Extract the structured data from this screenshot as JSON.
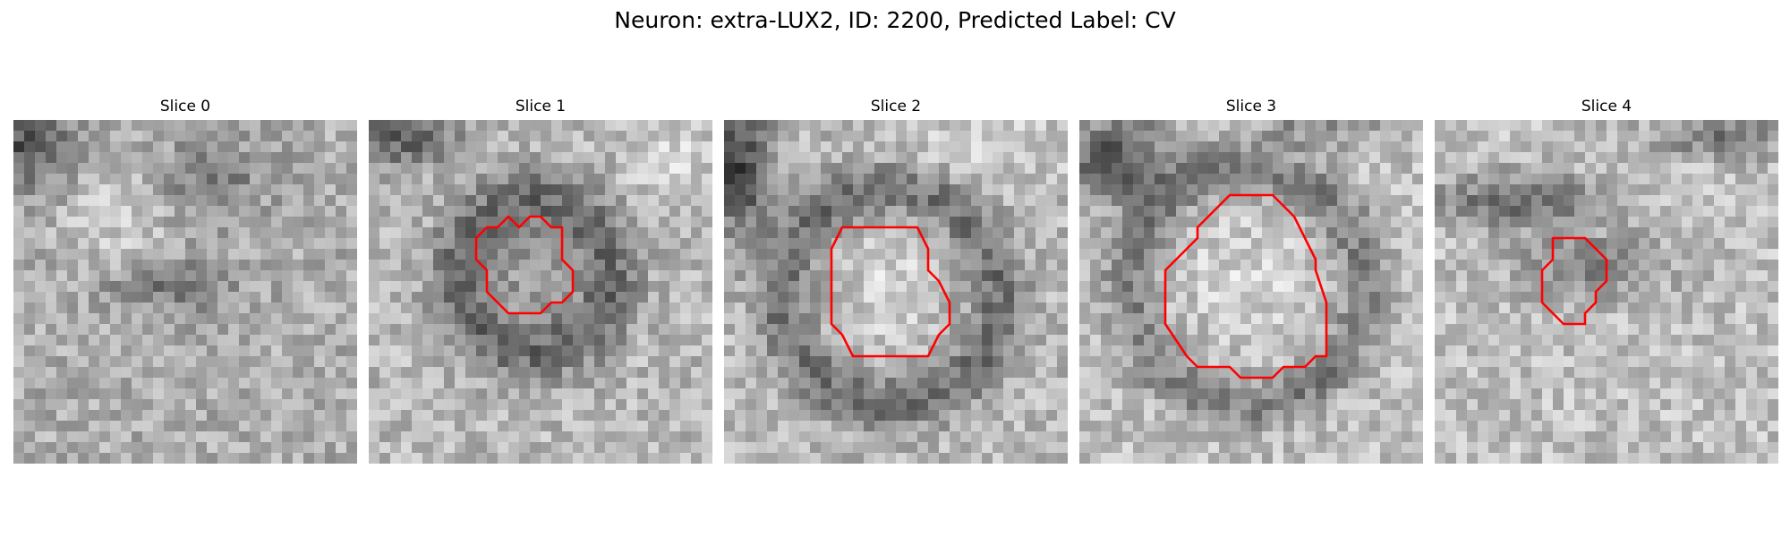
{
  "figure": {
    "title": "Neuron: extra-LUX2, ID: 2200, Predicted Label: CV"
  },
  "colors": {
    "contour": "#ff0000",
    "colormap": "gray"
  },
  "panels": [
    {
      "title": "Slice 0",
      "contour": []
    },
    {
      "title": "Slice 1",
      "contour": [
        [
          14,
          10
        ],
        [
          15,
          9
        ],
        [
          16,
          9
        ],
        [
          17,
          10
        ],
        [
          18,
          10
        ],
        [
          18,
          13
        ],
        [
          19,
          14
        ],
        [
          19,
          16
        ],
        [
          18,
          17
        ],
        [
          17,
          17
        ],
        [
          16,
          18
        ],
        [
          13,
          18
        ],
        [
          12,
          17
        ],
        [
          11,
          16
        ],
        [
          11,
          14
        ],
        [
          10,
          13
        ],
        [
          10,
          11
        ],
        [
          11,
          10
        ],
        [
          12,
          10
        ],
        [
          13,
          9
        ]
      ]
    },
    {
      "title": "Slice 2",
      "contour": [
        [
          11,
          10
        ],
        [
          18,
          10
        ],
        [
          19,
          12
        ],
        [
          19,
          14
        ],
        [
          20,
          15
        ],
        [
          21,
          17
        ],
        [
          21,
          19
        ],
        [
          20,
          20
        ],
        [
          19,
          22
        ],
        [
          12,
          22
        ],
        [
          11,
          20
        ],
        [
          10,
          19
        ],
        [
          10,
          12
        ]
      ]
    },
    {
      "title": "Slice 3",
      "contour": [
        [
          14,
          7
        ],
        [
          18,
          7
        ],
        [
          20,
          9
        ],
        [
          21,
          11
        ],
        [
          22,
          13
        ],
        [
          22,
          14
        ],
        [
          23,
          17
        ],
        [
          23,
          22
        ],
        [
          22,
          22
        ],
        [
          21,
          23
        ],
        [
          19,
          23
        ],
        [
          18,
          24
        ],
        [
          15,
          24
        ],
        [
          14,
          23
        ],
        [
          11,
          23
        ],
        [
          10,
          22
        ],
        [
          8,
          19
        ],
        [
          8,
          14
        ],
        [
          10,
          12
        ],
        [
          11,
          11
        ],
        [
          11,
          10
        ]
      ]
    },
    {
      "title": "Slice 4",
      "contour": [
        [
          11,
          11
        ],
        [
          14,
          11
        ],
        [
          15,
          12
        ],
        [
          16,
          13
        ],
        [
          16,
          15
        ],
        [
          15,
          16
        ],
        [
          15,
          17
        ],
        [
          14,
          18
        ],
        [
          14,
          19
        ],
        [
          12,
          19
        ],
        [
          11,
          18
        ],
        [
          10,
          17
        ],
        [
          10,
          14
        ],
        [
          11,
          13
        ]
      ]
    }
  ]
}
